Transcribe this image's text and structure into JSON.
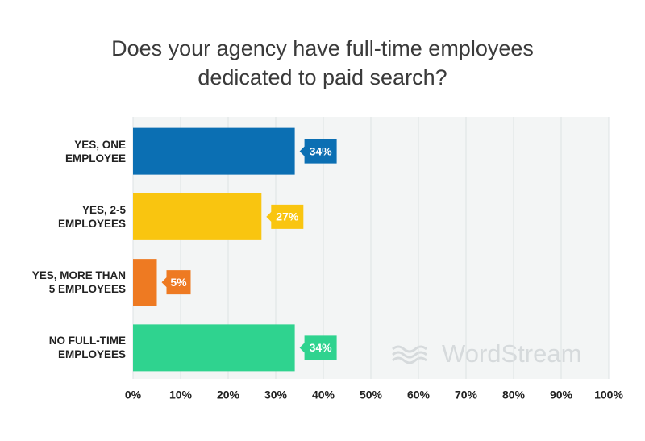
{
  "chart_data": {
    "type": "bar",
    "orientation": "horizontal",
    "title": "Does your agency have full-time employees\ndedicated to paid search?",
    "categories": [
      "YES, ONE\nEMPLOYEE",
      "YES, 2-5\nEMPLOYEES",
      "YES, MORE THAN\n5 EMPLOYEES",
      "NO FULL-TIME\nEMPLOYEES"
    ],
    "values": [
      34,
      27,
      5,
      34
    ],
    "value_labels": [
      "34%",
      "27%",
      "5%",
      "34%"
    ],
    "colors": [
      "#0b6fb3",
      "#f9c510",
      "#ee7a22",
      "#2fd38f"
    ],
    "xlim": [
      0,
      100
    ],
    "xticks": [
      {
        "value": 0,
        "label": "0%"
      },
      {
        "value": 10,
        "label": "10%"
      },
      {
        "value": 20,
        "label": "20%"
      },
      {
        "value": 30,
        "label": "30%"
      },
      {
        "value": 40,
        "label": "40%"
      },
      {
        "value": 50,
        "label": "50%"
      },
      {
        "value": 60,
        "label": "60%"
      },
      {
        "value": 70,
        "label": "70%"
      },
      {
        "value": 80,
        "label": "80%"
      },
      {
        "value": 90,
        "label": "90%"
      },
      {
        "value": 100,
        "label": "100%"
      }
    ],
    "grid": true,
    "watermark": "WordStream"
  }
}
